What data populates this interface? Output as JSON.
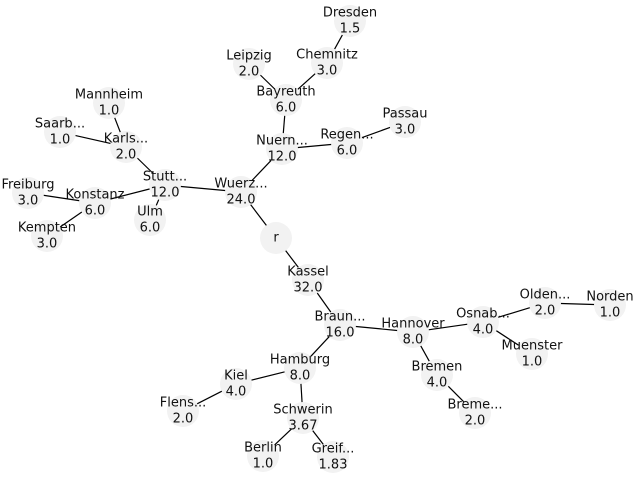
{
  "diagram": {
    "type": "tree",
    "colors": {
      "edge": "#000000",
      "node_fill": "#f2f2f2",
      "text": "#111111",
      "background": "#ffffff"
    },
    "root": "r",
    "nodes": [
      {
        "id": "r",
        "name": "r",
        "value": ""
      },
      {
        "id": "wuerzburg",
        "name": "Wuerz...",
        "value": "24.0"
      },
      {
        "id": "kassel",
        "name": "Kassel",
        "value": "32.0"
      },
      {
        "id": "nuernberg",
        "name": "Nuern...",
        "value": "12.0"
      },
      {
        "id": "stuttgart",
        "name": "Stutt...",
        "value": "12.0"
      },
      {
        "id": "bayreuth",
        "name": "Bayreuth",
        "value": "6.0"
      },
      {
        "id": "regensburg",
        "name": "Regen...",
        "value": "6.0"
      },
      {
        "id": "leipzig",
        "name": "Leipzig",
        "value": "2.0"
      },
      {
        "id": "chemnitz",
        "name": "Chemnitz",
        "value": "3.0"
      },
      {
        "id": "dresden",
        "name": "Dresden",
        "value": "1.5"
      },
      {
        "id": "passau",
        "name": "Passau",
        "value": "3.0"
      },
      {
        "id": "karlsruhe",
        "name": "Karls...",
        "value": "2.0"
      },
      {
        "id": "mannheim",
        "name": "Mannheim",
        "value": "1.0"
      },
      {
        "id": "saarbruecken",
        "name": "Saarb...",
        "value": "1.0"
      },
      {
        "id": "konstanz",
        "name": "Konstanz",
        "value": "6.0"
      },
      {
        "id": "freiburg",
        "name": "Freiburg",
        "value": "3.0"
      },
      {
        "id": "kempten",
        "name": "Kempten",
        "value": "3.0"
      },
      {
        "id": "ulm",
        "name": "Ulm",
        "value": "6.0"
      },
      {
        "id": "braunschweig",
        "name": "Braun...",
        "value": "16.0"
      },
      {
        "id": "hannover",
        "name": "Hannover",
        "value": "8.0"
      },
      {
        "id": "hamburg",
        "name": "Hamburg",
        "value": "8.0"
      },
      {
        "id": "osnabrueck",
        "name": "Osnab...",
        "value": "4.0"
      },
      {
        "id": "bremen",
        "name": "Bremen",
        "value": "4.0"
      },
      {
        "id": "bremerhaven",
        "name": "Breme...",
        "value": "2.0"
      },
      {
        "id": "oldenburg",
        "name": "Olden...",
        "value": "2.0"
      },
      {
        "id": "norden",
        "name": "Norden",
        "value": "1.0"
      },
      {
        "id": "muenster",
        "name": "Muenster",
        "value": "1.0"
      },
      {
        "id": "kiel",
        "name": "Kiel",
        "value": "4.0"
      },
      {
        "id": "flensburg",
        "name": "Flens...",
        "value": "2.0"
      },
      {
        "id": "schwerin",
        "name": "Schwerin",
        "value": "3.67"
      },
      {
        "id": "berlin",
        "name": "Berlin",
        "value": "1.0"
      },
      {
        "id": "greifswald",
        "name": "Greif...",
        "value": "1.83"
      }
    ],
    "edges": [
      [
        "r",
        "wuerzburg"
      ],
      [
        "r",
        "kassel"
      ],
      [
        "wuerzburg",
        "nuernberg"
      ],
      [
        "wuerzburg",
        "stuttgart"
      ],
      [
        "nuernberg",
        "bayreuth"
      ],
      [
        "nuernberg",
        "regensburg"
      ],
      [
        "bayreuth",
        "leipzig"
      ],
      [
        "bayreuth",
        "chemnitz"
      ],
      [
        "chemnitz",
        "dresden"
      ],
      [
        "regensburg",
        "passau"
      ],
      [
        "stuttgart",
        "karlsruhe"
      ],
      [
        "stuttgart",
        "konstanz"
      ],
      [
        "stuttgart",
        "ulm"
      ],
      [
        "karlsruhe",
        "mannheim"
      ],
      [
        "karlsruhe",
        "saarbruecken"
      ],
      [
        "konstanz",
        "freiburg"
      ],
      [
        "konstanz",
        "kempten"
      ],
      [
        "kassel",
        "braunschweig"
      ],
      [
        "braunschweig",
        "hannover"
      ],
      [
        "braunschweig",
        "hamburg"
      ],
      [
        "hannover",
        "osnabrueck"
      ],
      [
        "hannover",
        "bremen"
      ],
      [
        "bremen",
        "bremerhaven"
      ],
      [
        "osnabrueck",
        "oldenburg"
      ],
      [
        "oldenburg",
        "norden"
      ],
      [
        "osnabrueck",
        "muenster"
      ],
      [
        "hamburg",
        "kiel"
      ],
      [
        "kiel",
        "flensburg"
      ],
      [
        "hamburg",
        "schwerin"
      ],
      [
        "schwerin",
        "berlin"
      ],
      [
        "schwerin",
        "greifswald"
      ]
    ]
  }
}
